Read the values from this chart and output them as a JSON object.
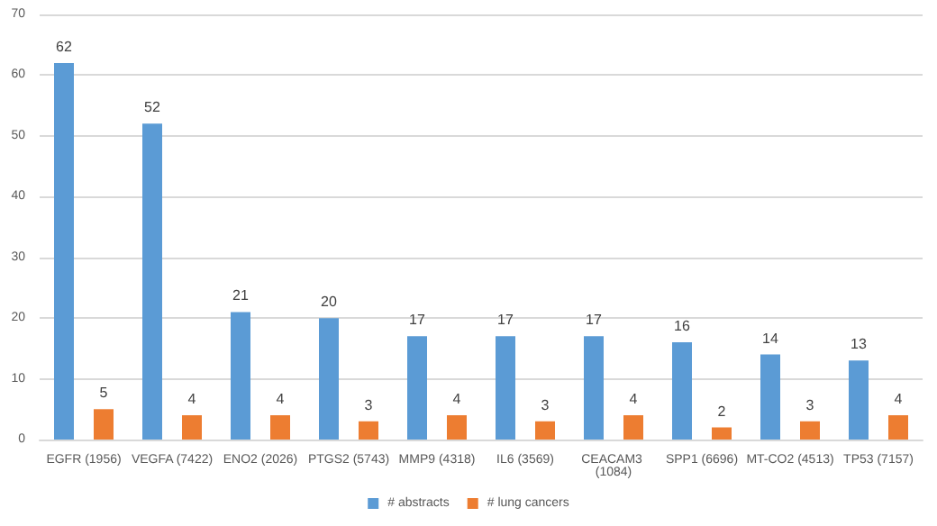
{
  "chart_data": {
    "type": "bar",
    "categories": [
      "EGFR (1956)",
      "VEGFA (7422)",
      "ENO2 (2026)",
      "PTGS2 (5743)",
      "MMP9 (4318)",
      "IL6 (3569)",
      "CEACAM3 (1084)",
      "SPP1 (6696)",
      "MT-CO2 (4513)",
      "TP53 (7157)"
    ],
    "series": [
      {
        "name": "# abstracts",
        "color": "#5b9bd5",
        "values": [
          62,
          52,
          21,
          20,
          17,
          17,
          17,
          16,
          14,
          13
        ]
      },
      {
        "name": "# lung cancers",
        "color": "#ed7d31",
        "values": [
          5,
          4,
          4,
          3,
          4,
          3,
          4,
          2,
          3,
          4
        ]
      }
    ],
    "ylim": [
      0,
      70
    ],
    "yticks": [
      0,
      10,
      20,
      30,
      40,
      50,
      60,
      70
    ],
    "grid": "y",
    "legend": "bottom",
    "data_labels": true
  }
}
